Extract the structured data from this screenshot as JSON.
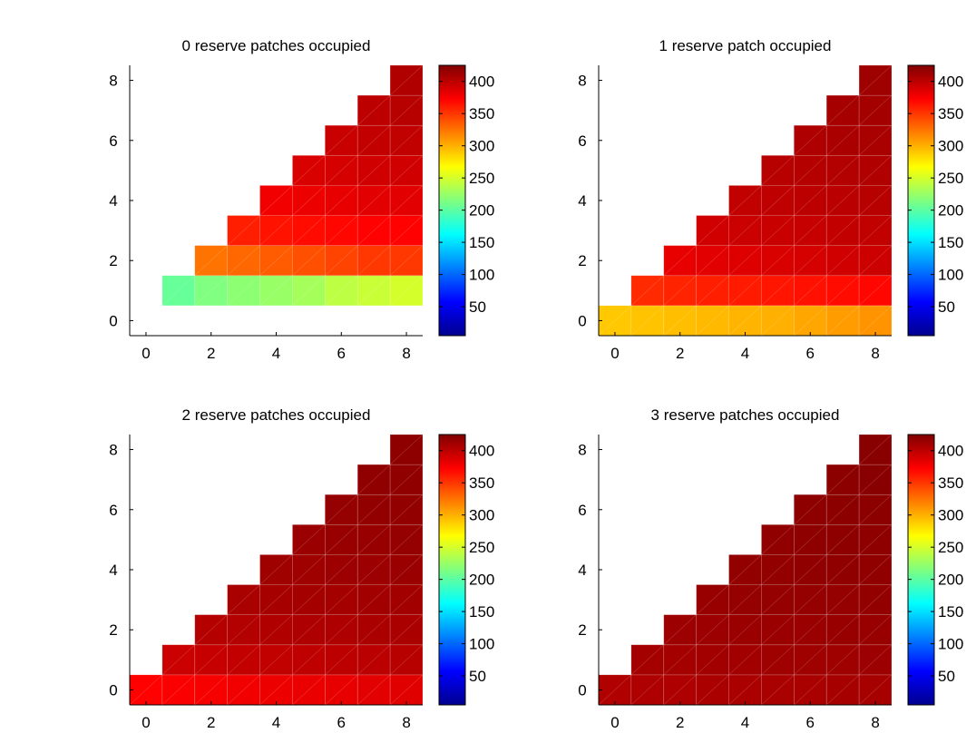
{
  "chart_data": [
    {
      "type": "heatmap",
      "title": "0 reserve patches occupied",
      "x_ticks": [
        "0",
        "2",
        "4",
        "6",
        "8"
      ],
      "y_ticks": [
        "0",
        "2",
        "4",
        "6",
        "8"
      ],
      "xlim": [
        -0.5,
        8.5
      ],
      "ylim": [
        -0.5,
        8.5
      ],
      "colorbar": {
        "ticks": [
          "50",
          "100",
          "150",
          "200",
          "250",
          "300",
          "350",
          "400"
        ],
        "range": [
          5,
          425
        ],
        "colormap": "jet"
      },
      "cells": [
        {
          "y": 1,
          "values": [
            {
              "x": 1,
              "v": 205
            },
            {
              "x": 2,
              "v": 215
            },
            {
              "x": 3,
              "v": 220
            },
            {
              "x": 4,
              "v": 225
            },
            {
              "x": 5,
              "v": 230
            },
            {
              "x": 6,
              "v": 240
            },
            {
              "x": 7,
              "v": 245
            },
            {
              "x": 8,
              "v": 250
            }
          ]
        },
        {
          "y": 2,
          "values": [
            {
              "x": 2,
              "v": 325
            },
            {
              "x": 3,
              "v": 330
            },
            {
              "x": 4,
              "v": 335
            },
            {
              "x": 5,
              "v": 340
            },
            {
              "x": 6,
              "v": 345
            },
            {
              "x": 7,
              "v": 350
            },
            {
              "x": 8,
              "v": 350
            }
          ]
        },
        {
          "y": 3,
          "values": [
            {
              "x": 3,
              "v": 360
            },
            {
              "x": 4,
              "v": 365
            },
            {
              "x": 5,
              "v": 368
            },
            {
              "x": 6,
              "v": 370
            },
            {
              "x": 7,
              "v": 372
            },
            {
              "x": 8,
              "v": 372
            }
          ]
        },
        {
          "y": 4,
          "values": [
            {
              "x": 4,
              "v": 378
            },
            {
              "x": 5,
              "v": 380
            },
            {
              "x": 6,
              "v": 382
            },
            {
              "x": 7,
              "v": 384
            },
            {
              "x": 8,
              "v": 384
            }
          ]
        },
        {
          "y": 5,
          "values": [
            {
              "x": 5,
              "v": 388
            },
            {
              "x": 6,
              "v": 390
            },
            {
              "x": 7,
              "v": 392
            },
            {
              "x": 8,
              "v": 392
            }
          ]
        },
        {
          "y": 6,
          "values": [
            {
              "x": 6,
              "v": 395
            },
            {
              "x": 7,
              "v": 397
            },
            {
              "x": 8,
              "v": 398
            }
          ]
        },
        {
          "y": 7,
          "values": [
            {
              "x": 7,
              "v": 400
            },
            {
              "x": 8,
              "v": 402
            }
          ]
        },
        {
          "y": 8,
          "values": [
            {
              "x": 8,
              "v": 405
            }
          ]
        }
      ]
    },
    {
      "type": "heatmap",
      "title": "1 reserve patch occupied",
      "x_ticks": [
        "0",
        "2",
        "4",
        "6",
        "8"
      ],
      "y_ticks": [
        "0",
        "2",
        "4",
        "6",
        "8"
      ],
      "xlim": [
        -0.5,
        8.5
      ],
      "ylim": [
        -0.5,
        8.5
      ],
      "colorbar": {
        "ticks": [
          "50",
          "100",
          "150",
          "200",
          "250",
          "300",
          "350",
          "400"
        ],
        "range": [
          5,
          425
        ],
        "colormap": "jet"
      },
      "cells": [
        {
          "y": 0,
          "values": [
            {
              "x": 0,
              "v": 290
            },
            {
              "x": 1,
              "v": 292
            },
            {
              "x": 2,
              "v": 294
            },
            {
              "x": 3,
              "v": 296
            },
            {
              "x": 4,
              "v": 298
            },
            {
              "x": 5,
              "v": 300
            },
            {
              "x": 6,
              "v": 304
            },
            {
              "x": 7,
              "v": 308
            },
            {
              "x": 8,
              "v": 312
            }
          ]
        },
        {
          "y": 1,
          "values": [
            {
              "x": 1,
              "v": 355
            },
            {
              "x": 2,
              "v": 358
            },
            {
              "x": 3,
              "v": 360
            },
            {
              "x": 4,
              "v": 362
            },
            {
              "x": 5,
              "v": 364
            },
            {
              "x": 6,
              "v": 366
            },
            {
              "x": 7,
              "v": 368
            },
            {
              "x": 8,
              "v": 370
            }
          ]
        },
        {
          "y": 2,
          "values": [
            {
              "x": 2,
              "v": 382
            },
            {
              "x": 3,
              "v": 384
            },
            {
              "x": 4,
              "v": 386
            },
            {
              "x": 5,
              "v": 388
            },
            {
              "x": 6,
              "v": 390
            },
            {
              "x": 7,
              "v": 392
            },
            {
              "x": 8,
              "v": 393
            }
          ]
        },
        {
          "y": 3,
          "values": [
            {
              "x": 3,
              "v": 392
            },
            {
              "x": 4,
              "v": 394
            },
            {
              "x": 5,
              "v": 395
            },
            {
              "x": 6,
              "v": 396
            },
            {
              "x": 7,
              "v": 397
            },
            {
              "x": 8,
              "v": 398
            }
          ]
        },
        {
          "y": 4,
          "values": [
            {
              "x": 4,
              "v": 398
            },
            {
              "x": 5,
              "v": 399
            },
            {
              "x": 6,
              "v": 400
            },
            {
              "x": 7,
              "v": 401
            },
            {
              "x": 8,
              "v": 402
            }
          ]
        },
        {
          "y": 5,
          "values": [
            {
              "x": 5,
              "v": 402
            },
            {
              "x": 6,
              "v": 403
            },
            {
              "x": 7,
              "v": 404
            },
            {
              "x": 8,
              "v": 405
            }
          ]
        },
        {
          "y": 6,
          "values": [
            {
              "x": 6,
              "v": 406
            },
            {
              "x": 7,
              "v": 407
            },
            {
              "x": 8,
              "v": 408
            }
          ]
        },
        {
          "y": 7,
          "values": [
            {
              "x": 7,
              "v": 409
            },
            {
              "x": 8,
              "v": 410
            }
          ]
        },
        {
          "y": 8,
          "values": [
            {
              "x": 8,
              "v": 412
            }
          ]
        }
      ]
    },
    {
      "type": "heatmap",
      "title": "2 reserve patches occupied",
      "x_ticks": [
        "0",
        "2",
        "4",
        "6",
        "8"
      ],
      "y_ticks": [
        "0",
        "2",
        "4",
        "6",
        "8"
      ],
      "xlim": [
        -0.5,
        8.5
      ],
      "ylim": [
        -0.5,
        8.5
      ],
      "colorbar": {
        "ticks": [
          "50",
          "100",
          "150",
          "200",
          "250",
          "300",
          "350",
          "400"
        ],
        "range": [
          5,
          425
        ],
        "colormap": "jet"
      },
      "cells": [
        {
          "y": 0,
          "values": [
            {
              "x": 0,
              "v": 372
            },
            {
              "x": 1,
              "v": 374
            },
            {
              "x": 2,
              "v": 376
            },
            {
              "x": 3,
              "v": 378
            },
            {
              "x": 4,
              "v": 380
            },
            {
              "x": 5,
              "v": 381
            },
            {
              "x": 6,
              "v": 382
            },
            {
              "x": 7,
              "v": 384
            },
            {
              "x": 8,
              "v": 385
            }
          ]
        },
        {
          "y": 1,
          "values": [
            {
              "x": 1,
              "v": 394
            },
            {
              "x": 2,
              "v": 396
            },
            {
              "x": 3,
              "v": 397
            },
            {
              "x": 4,
              "v": 398
            },
            {
              "x": 5,
              "v": 399
            },
            {
              "x": 6,
              "v": 400
            },
            {
              "x": 7,
              "v": 401
            },
            {
              "x": 8,
              "v": 402
            }
          ]
        },
        {
          "y": 2,
          "values": [
            {
              "x": 2,
              "v": 403
            },
            {
              "x": 3,
              "v": 404
            },
            {
              "x": 4,
              "v": 405
            },
            {
              "x": 5,
              "v": 406
            },
            {
              "x": 6,
              "v": 406
            },
            {
              "x": 7,
              "v": 407
            },
            {
              "x": 8,
              "v": 407
            }
          ]
        },
        {
          "y": 3,
          "values": [
            {
              "x": 3,
              "v": 408
            },
            {
              "x": 4,
              "v": 409
            },
            {
              "x": 5,
              "v": 410
            },
            {
              "x": 6,
              "v": 410
            },
            {
              "x": 7,
              "v": 411
            },
            {
              "x": 8,
              "v": 411
            }
          ]
        },
        {
          "y": 4,
          "values": [
            {
              "x": 4,
              "v": 412
            },
            {
              "x": 5,
              "v": 412
            },
            {
              "x": 6,
              "v": 413
            },
            {
              "x": 7,
              "v": 413
            },
            {
              "x": 8,
              "v": 414
            }
          ]
        },
        {
          "y": 5,
          "values": [
            {
              "x": 5,
              "v": 414
            },
            {
              "x": 6,
              "v": 415
            },
            {
              "x": 7,
              "v": 415
            },
            {
              "x": 8,
              "v": 416
            }
          ]
        },
        {
          "y": 6,
          "values": [
            {
              "x": 6,
              "v": 416
            },
            {
              "x": 7,
              "v": 417
            },
            {
              "x": 8,
              "v": 417
            }
          ]
        },
        {
          "y": 7,
          "values": [
            {
              "x": 7,
              "v": 418
            },
            {
              "x": 8,
              "v": 418
            }
          ]
        },
        {
          "y": 8,
          "values": [
            {
              "x": 8,
              "v": 419
            }
          ]
        }
      ]
    },
    {
      "type": "heatmap",
      "title": "3 reserve patches occupied",
      "x_ticks": [
        "0",
        "2",
        "4",
        "6",
        "8"
      ],
      "y_ticks": [
        "0",
        "2",
        "4",
        "6",
        "8"
      ],
      "xlim": [
        -0.5,
        8.5
      ],
      "ylim": [
        -0.5,
        8.5
      ],
      "colorbar": {
        "ticks": [
          "50",
          "100",
          "150",
          "200",
          "250",
          "300",
          "350",
          "400"
        ],
        "range": [
          5,
          425
        ],
        "colormap": "jet"
      },
      "cells": [
        {
          "y": 0,
          "values": [
            {
              "x": 0,
              "v": 405
            },
            {
              "x": 1,
              "v": 406
            },
            {
              "x": 2,
              "v": 406
            },
            {
              "x": 3,
              "v": 407
            },
            {
              "x": 4,
              "v": 407
            },
            {
              "x": 5,
              "v": 408
            },
            {
              "x": 6,
              "v": 408
            },
            {
              "x": 7,
              "v": 409
            },
            {
              "x": 8,
              "v": 409
            }
          ]
        },
        {
          "y": 1,
          "values": [
            {
              "x": 1,
              "v": 410
            },
            {
              "x": 2,
              "v": 410
            },
            {
              "x": 3,
              "v": 411
            },
            {
              "x": 4,
              "v": 411
            },
            {
              "x": 5,
              "v": 412
            },
            {
              "x": 6,
              "v": 412
            },
            {
              "x": 7,
              "v": 412
            },
            {
              "x": 8,
              "v": 413
            }
          ]
        },
        {
          "y": 2,
          "values": [
            {
              "x": 2,
              "v": 413
            },
            {
              "x": 3,
              "v": 413
            },
            {
              "x": 4,
              "v": 414
            },
            {
              "x": 5,
              "v": 414
            },
            {
              "x": 6,
              "v": 414
            },
            {
              "x": 7,
              "v": 415
            },
            {
              "x": 8,
              "v": 415
            }
          ]
        },
        {
          "y": 3,
          "values": [
            {
              "x": 3,
              "v": 415
            },
            {
              "x": 4,
              "v": 416
            },
            {
              "x": 5,
              "v": 416
            },
            {
              "x": 6,
              "v": 416
            },
            {
              "x": 7,
              "v": 416
            },
            {
              "x": 8,
              "v": 417
            }
          ]
        },
        {
          "y": 4,
          "values": [
            {
              "x": 4,
              "v": 417
            },
            {
              "x": 5,
              "v": 417
            },
            {
              "x": 6,
              "v": 418
            },
            {
              "x": 7,
              "v": 418
            },
            {
              "x": 8,
              "v": 418
            }
          ]
        },
        {
          "y": 5,
          "values": [
            {
              "x": 5,
              "v": 418
            },
            {
              "x": 6,
              "v": 419
            },
            {
              "x": 7,
              "v": 419
            },
            {
              "x": 8,
              "v": 419
            }
          ]
        },
        {
          "y": 6,
          "values": [
            {
              "x": 6,
              "v": 419
            },
            {
              "x": 7,
              "v": 420
            },
            {
              "x": 8,
              "v": 420
            }
          ]
        },
        {
          "y": 7,
          "values": [
            {
              "x": 7,
              "v": 420
            },
            {
              "x": 8,
              "v": 421
            }
          ]
        },
        {
          "y": 8,
          "values": [
            {
              "x": 8,
              "v": 421
            }
          ]
        }
      ]
    }
  ]
}
